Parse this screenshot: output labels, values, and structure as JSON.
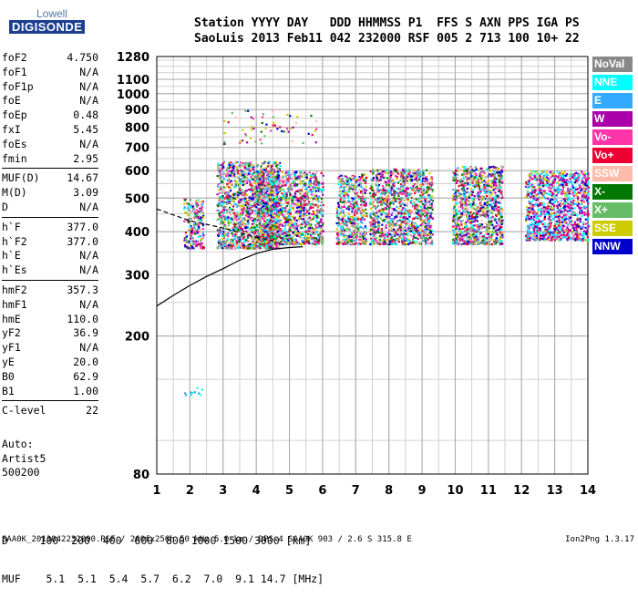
{
  "header": {
    "line1": "Station YYYY DAY   DDD HHMMSS P1  FFS S AXN PPS IGA PS",
    "line2": "SaoLuis 2013 Feb11 042 232000 RSF 005 2 713 100 10+ 22"
  },
  "logo": {
    "line1": "Lowell",
    "line2": "DIGISONDE"
  },
  "params": [
    [
      {
        "label": "foF2",
        "value": "4.750"
      },
      {
        "label": "foF1",
        "value": "N/A"
      },
      {
        "label": "foF1p",
        "value": "N/A"
      },
      {
        "label": "foE",
        "value": "N/A"
      },
      {
        "label": "foEp",
        "value": "0.48"
      },
      {
        "label": "fxI",
        "value": "5.45"
      },
      {
        "label": "foEs",
        "value": "N/A"
      },
      {
        "label": "fmin",
        "value": "2.95"
      }
    ],
    [
      {
        "label": "MUF(D)",
        "value": "14.67"
      },
      {
        "label": "M(D)",
        "value": "3.09"
      },
      {
        "label": "D",
        "value": "N/A"
      }
    ],
    [
      {
        "label": "h`F",
        "value": "377.0"
      },
      {
        "label": "h`F2",
        "value": "377.0"
      },
      {
        "label": "h`E",
        "value": "N/A"
      },
      {
        "label": "h`Es",
        "value": "N/A"
      }
    ],
    [
      {
        "label": "hmF2",
        "value": "357.3"
      },
      {
        "label": "hmF1",
        "value": "N/A"
      },
      {
        "label": "hmE",
        "value": "110.0"
      },
      {
        "label": "yF2",
        "value": "36.9"
      },
      {
        "label": "yF1",
        "value": "N/A"
      },
      {
        "label": "yE",
        "value": "20.0"
      },
      {
        "label": "B0",
        "value": "62.9"
      },
      {
        "label": "B1",
        "value": "1.00"
      }
    ],
    [
      {
        "label": "C-level",
        "value": "22"
      }
    ]
  ],
  "autoscale": {
    "line1": "Auto:",
    "line2": "Artist5",
    "line3": "500200"
  },
  "muf_table": {
    "d_line": "D     100  200  400  600  800 1000 1500 3000 [km]",
    "muf_line": "MUF    5.1  5.1  5.4  5.7  6.2  7.0  9.1 14.7 [MHz]"
  },
  "footer": {
    "text": "SAA0K_2013042232000.RSF / 260fx256h 50 kHz 5.0 km / DPS-4 SAA0K 903 / 2.6 S 315.8 E",
    "version": "Ion2Png 1.3.17"
  },
  "legend": [
    {
      "label": "NoVal",
      "color": "#888888",
      "text_color": "#ffffff"
    },
    {
      "label": "NNE",
      "color": "#00ffff",
      "text_color": "#ffffff"
    },
    {
      "label": "E",
      "color": "#33aaff",
      "text_color": "#ffffff"
    },
    {
      "label": "W",
      "color": "#aa00aa",
      "text_color": "#ffffff"
    },
    {
      "label": "Vo-",
      "color": "#ff33aa",
      "text_color": "#ffffff"
    },
    {
      "label": "Vo+",
      "color": "#ee0033",
      "text_color": "#ffffff"
    },
    {
      "label": "SSW",
      "color": "#ffbbaa",
      "text_color": "#ffffff"
    },
    {
      "label": "X-",
      "color": "#007700",
      "text_color": "#ffffff"
    },
    {
      "label": "X+",
      "color": "#66bb66",
      "text_color": "#ffffff"
    },
    {
      "label": "SSE",
      "color": "#cccc00",
      "text_color": "#ffffff"
    },
    {
      "label": "NNW",
      "color": "#0000cc",
      "text_color": "#ffffff"
    }
  ],
  "chart_data": {
    "type": "scatter",
    "title": "",
    "xlabel": "",
    "ylabel": "",
    "xlim": [
      1,
      14
    ],
    "ylim": [
      80,
      1280
    ],
    "y_scale": "log",
    "x_ticks": [
      1,
      2,
      3,
      4,
      5,
      6,
      7,
      8,
      9,
      10,
      11,
      12,
      13,
      14
    ],
    "y_ticks": [
      80,
      200,
      300,
      400,
      500,
      600,
      700,
      800,
      900,
      1000,
      1100,
      1280
    ],
    "grid": true,
    "clusters": [
      {
        "freq_range": [
          1.8,
          2.4
        ],
        "height_range": [
          360,
          500
        ],
        "direction": "mixed"
      },
      {
        "freq_range": [
          2.8,
          4.7
        ],
        "height_range": [
          360,
          640
        ],
        "direction": "mixed"
      },
      {
        "freq_range": [
          3.0,
          5.8
        ],
        "height_range": [
          720,
          900
        ],
        "direction": "mixed sparse"
      },
      {
        "freq_range": [
          4.0,
          6.0
        ],
        "height_range": [
          370,
          600
        ],
        "direction": "mixed"
      },
      {
        "freq_range": [
          6.4,
          7.3
        ],
        "height_range": [
          370,
          590
        ],
        "direction": "mixed"
      },
      {
        "freq_range": [
          7.4,
          9.3
        ],
        "height_range": [
          370,
          610
        ],
        "direction": "mixed"
      },
      {
        "freq_range": [
          9.9,
          11.4
        ],
        "height_range": [
          370,
          620
        ],
        "direction": "mixed"
      },
      {
        "freq_range": [
          12.1,
          14.0
        ],
        "height_range": [
          380,
          600
        ],
        "direction": "NNE/W"
      },
      {
        "freq_range": [
          1.8,
          2.4
        ],
        "height_range": [
          136,
          143
        ],
        "direction": "NNE/SSE"
      }
    ],
    "profile_curve": [
      [
        1.0,
        244
      ],
      [
        1.5,
        262
      ],
      [
        2.0,
        280
      ],
      [
        2.5,
        297
      ],
      [
        3.0,
        313
      ],
      [
        3.5,
        331
      ],
      [
        4.0,
        346
      ],
      [
        4.5,
        356
      ],
      [
        5.0,
        360
      ],
      [
        5.4,
        362
      ]
    ],
    "trace_dashed": [
      [
        1.0,
        465
      ],
      [
        2.0,
        430
      ],
      [
        3.0,
        410
      ],
      [
        4.0,
        385
      ],
      [
        4.6,
        375
      ]
    ]
  }
}
